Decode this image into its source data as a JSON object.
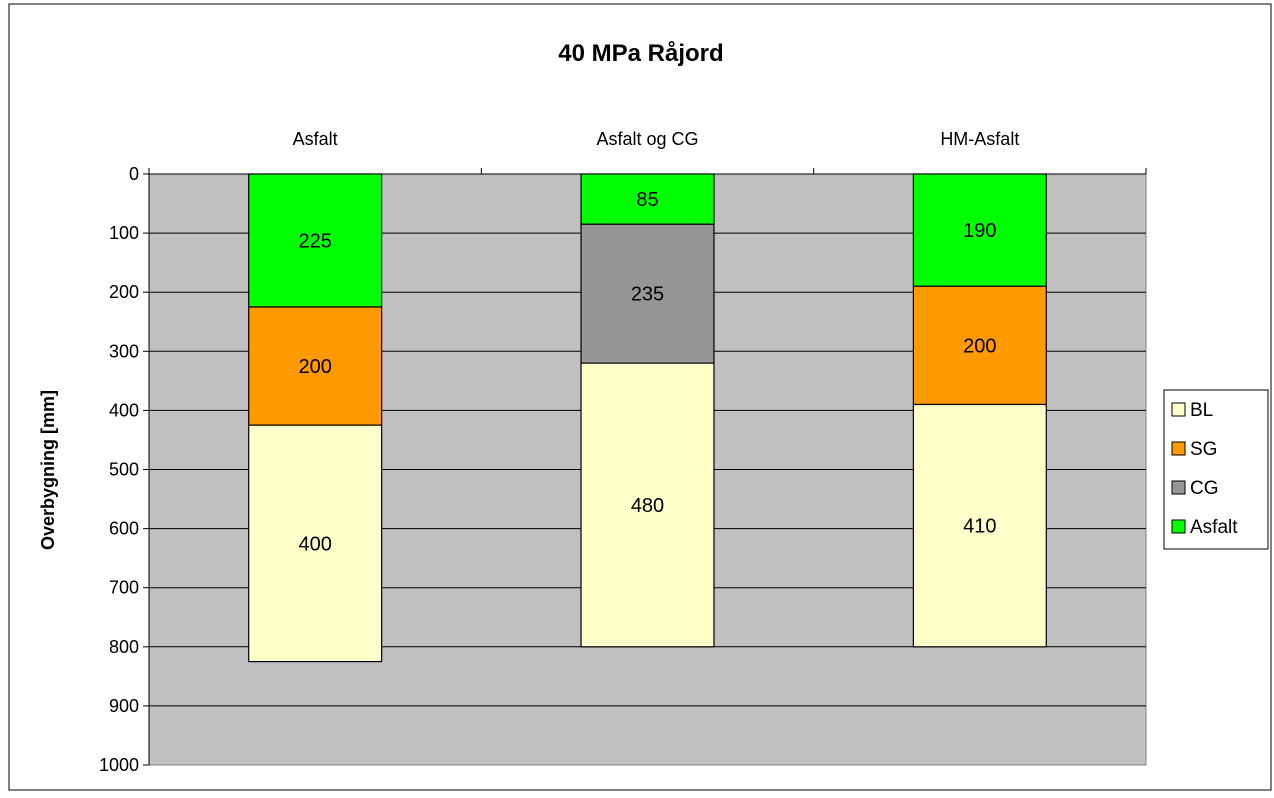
{
  "chart_data": {
    "type": "bar",
    "stacked": true,
    "inverted_y": true,
    "title": "40 MPa Råjord",
    "xlabel": "",
    "ylabel": "Overbygning [mm]",
    "ylim": [
      0,
      1000
    ],
    "yticks": [
      0,
      100,
      200,
      300,
      400,
      500,
      600,
      700,
      800,
      900,
      1000
    ],
    "categories": [
      "Asfalt",
      "Asfalt og CG",
      "HM-Asfalt"
    ],
    "stack_order": [
      "Asfalt",
      "CG",
      "SG",
      "BL"
    ],
    "series": [
      {
        "name": "BL",
        "color": "#FFFFCC",
        "values": [
          400,
          480,
          410
        ]
      },
      {
        "name": "SG",
        "color": "#FF9900",
        "values": [
          200,
          0,
          200
        ]
      },
      {
        "name": "CG",
        "color": "#969696",
        "values": [
          0,
          235,
          0
        ]
      },
      {
        "name": "Asfalt",
        "color": "#00FF00",
        "values": [
          225,
          85,
          190
        ]
      }
    ],
    "legend_order": [
      "BL",
      "SG",
      "CG",
      "Asfalt"
    ],
    "legend_position": "right",
    "grid": true,
    "plot_background": "#C0C0C0"
  }
}
